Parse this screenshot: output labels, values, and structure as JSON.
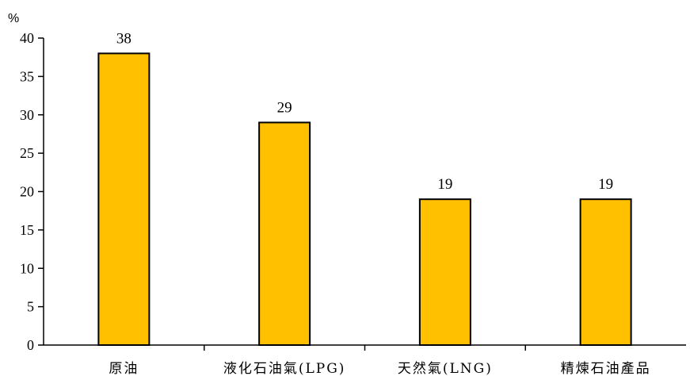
{
  "chart_data": {
    "type": "bar",
    "categories": [
      "原油",
      "液化石油氣(LPG)",
      "天然氣(LNG)",
      "精煉石油產品"
    ],
    "values": [
      38,
      29,
      19,
      19
    ],
    "ylabel": "%",
    "ylim": [
      0,
      40
    ],
    "yticks": [
      0,
      5,
      10,
      15,
      20,
      25,
      30,
      35,
      40
    ],
    "bar_color": "#FFC000",
    "grid": false,
    "legend": "none"
  }
}
